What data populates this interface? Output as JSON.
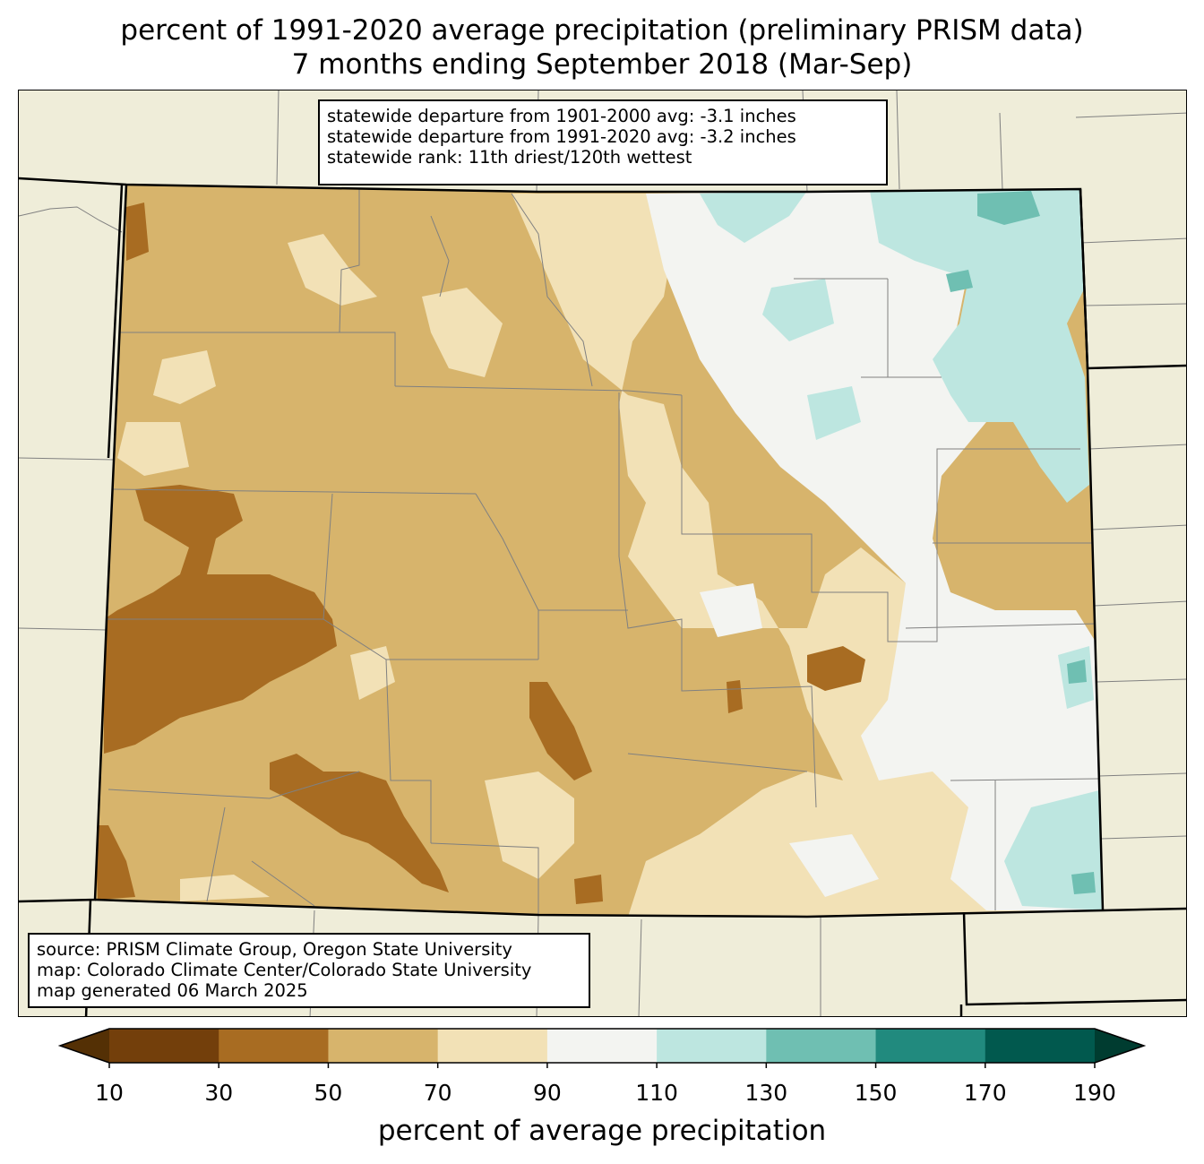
{
  "title": {
    "line1": "percent of 1991-2020 average precipitation (preliminary PRISM data)",
    "line2": "7 months ending September 2018 (Mar-Sep)"
  },
  "stats_box": {
    "lines": [
      "statewide departure from 1901-2000 avg: -3.1 inches",
      "statewide departure from 1991-2020 avg: -3.2 inches",
      "statewide rank: 11th driest/120th wettest"
    ]
  },
  "source_box": {
    "lines": [
      "source: PRISM Climate Group, Oregon State University",
      "map: Colorado Climate Center/Colorado State University",
      "map generated 06 March 2025"
    ]
  },
  "colorbar": {
    "label": "percent of average precipitation",
    "ticks": [
      "10",
      "30",
      "50",
      "70",
      "90",
      "110",
      "130",
      "150",
      "170",
      "190"
    ],
    "under_color": "#543005",
    "over_color": "#003c30",
    "colors": [
      "#733f0b",
      "#a86c22",
      "#d7b46c",
      "#f2e1b6",
      "#f3f4f1",
      "#bde6e0",
      "#6fbfb2",
      "#218a7e",
      "#01594e"
    ]
  },
  "map_colors": {
    "background_land": "#efedd9",
    "state_outline": "#000000",
    "county_lines": "#808080"
  }
}
